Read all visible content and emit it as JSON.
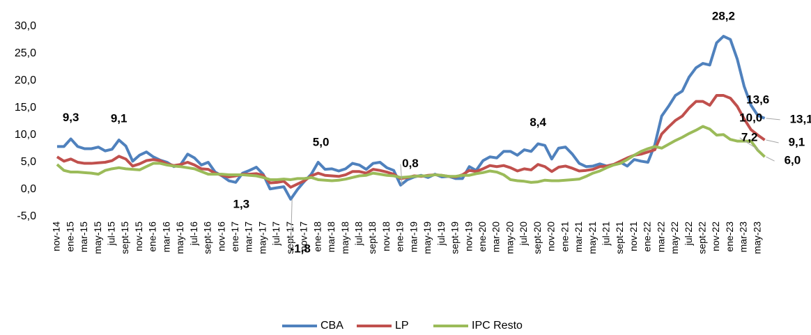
{
  "chart_data": {
    "type": "line",
    "categories": [
      "nov-14",
      null,
      "ene-15",
      null,
      "mar-15",
      null,
      "may-15",
      null,
      "jul-15",
      null,
      "sept-15",
      null,
      "nov-15",
      null,
      "ene-16",
      null,
      "mar-16",
      null,
      "may-16",
      null,
      "jul-16",
      null,
      "sept-16",
      null,
      "nov-16",
      null,
      "ene-17",
      null,
      "mar-17",
      null,
      "may-17",
      null,
      "jul-17",
      null,
      "sept-17",
      null,
      "nov-17",
      null,
      "ene-18",
      null,
      "mar-18",
      null,
      "may-18",
      null,
      "jul-18",
      null,
      "sept-18",
      null,
      "nov-18",
      null,
      "ene-19",
      null,
      "mar-19",
      null,
      "may-19",
      null,
      "jul-19",
      null,
      "sept-19",
      null,
      "nov-19",
      null,
      "ene-20",
      null,
      "mar-20",
      null,
      "may-20",
      null,
      "jul-20",
      null,
      "sept-20",
      null,
      "nov-20",
      null,
      "ene-21",
      null,
      "mar-21",
      null,
      "may-21",
      null,
      "jul-21",
      null,
      "sept-21",
      null,
      "nov-21",
      null,
      "ene-22",
      null,
      "mar-22",
      null,
      "may-22",
      null,
      "jul-22",
      null,
      "sept-22",
      null,
      "nov-22",
      null,
      "ene-23",
      null,
      "mar-23",
      null,
      "may-23",
      null
    ],
    "series": [
      {
        "name": "CBA",
        "color": "#4f81bd",
        "values": [
          7.9,
          7.9,
          9.3,
          7.9,
          7.5,
          7.5,
          7.8,
          7.1,
          7.4,
          9.1,
          8.0,
          5.2,
          6.3,
          6.9,
          6.0,
          5.4,
          5.0,
          4.2,
          4.6,
          6.5,
          5.8,
          4.5,
          5.0,
          3.2,
          2.5,
          1.6,
          1.3,
          3.0,
          3.5,
          4.1,
          2.8,
          0.1,
          0.3,
          0.5,
          -1.8,
          0.0,
          1.5,
          2.8,
          5.0,
          3.7,
          3.8,
          3.4,
          3.8,
          4.8,
          4.5,
          3.7,
          4.8,
          5.0,
          4.0,
          3.5,
          0.8,
          1.8,
          2.3,
          2.6,
          2.2,
          2.8,
          2.3,
          2.4,
          2.0,
          2.0,
          4.2,
          3.5,
          5.3,
          6.0,
          5.8,
          7.0,
          7.0,
          6.3,
          7.3,
          7.0,
          8.4,
          8.1,
          5.6,
          7.6,
          7.8,
          6.5,
          4.8,
          4.2,
          4.3,
          4.7,
          4.3,
          4.6,
          5.0,
          4.3,
          5.5,
          5.2,
          5.0,
          8.2,
          13.5,
          15.3,
          17.3,
          18.1,
          20.7,
          22.4,
          23.2,
          22.9,
          27.0,
          28.2,
          27.6,
          24.0,
          19.0,
          15.5,
          13.6,
          13.1
        ],
        "value_labels": [
          null,
          null,
          "9,3",
          null,
          null,
          null,
          null,
          null,
          null,
          "9,1",
          null,
          null,
          null,
          null,
          null,
          null,
          null,
          null,
          null,
          null,
          null,
          null,
          null,
          null,
          null,
          null,
          "1,3",
          null,
          null,
          null,
          null,
          null,
          null,
          null,
          "-1,8",
          null,
          null,
          null,
          "5,0",
          null,
          null,
          null,
          null,
          null,
          null,
          null,
          null,
          null,
          null,
          null,
          "0,8",
          null,
          null,
          null,
          null,
          null,
          null,
          null,
          null,
          null,
          null,
          null,
          null,
          null,
          null,
          null,
          null,
          null,
          null,
          null,
          "8,4",
          null,
          null,
          null,
          null,
          null,
          null,
          null,
          null,
          null,
          null,
          null,
          null,
          null,
          null,
          null,
          null,
          null,
          null,
          null,
          null,
          null,
          null,
          null,
          null,
          null,
          null,
          "28,2",
          null,
          null,
          null,
          null,
          "13,6",
          "13,1"
        ]
      },
      {
        "name": "LP",
        "color": "#c0504d",
        "values": [
          6.0,
          5.2,
          5.6,
          5.0,
          4.8,
          4.8,
          4.9,
          5.0,
          5.3,
          6.1,
          5.6,
          4.3,
          4.7,
          5.3,
          5.5,
          5.3,
          4.7,
          4.4,
          4.6,
          5.0,
          4.5,
          3.8,
          3.7,
          3.0,
          2.6,
          2.3,
          2.5,
          2.8,
          2.8,
          2.9,
          2.6,
          1.2,
          1.3,
          1.5,
          0.4,
          1.0,
          1.6,
          2.5,
          3.0,
          2.6,
          2.5,
          2.4,
          2.7,
          3.3,
          3.3,
          3.0,
          3.7,
          3.5,
          3.2,
          2.8,
          2.0,
          2.2,
          2.5,
          2.4,
          2.6,
          2.7,
          2.6,
          2.4,
          2.3,
          2.7,
          3.5,
          3.3,
          3.8,
          4.4,
          4.2,
          4.4,
          4.0,
          3.4,
          3.8,
          3.6,
          4.6,
          4.2,
          3.3,
          4.1,
          4.3,
          3.9,
          3.4,
          3.5,
          3.7,
          4.2,
          4.3,
          4.6,
          5.2,
          5.8,
          6.3,
          6.5,
          6.9,
          7.3,
          10.2,
          11.5,
          12.7,
          13.5,
          15.0,
          16.2,
          16.2,
          15.5,
          17.3,
          17.3,
          16.8,
          15.3,
          13.0,
          11.0,
          10.0,
          9.1
        ],
        "value_labels": [
          null,
          null,
          null,
          null,
          null,
          null,
          null,
          null,
          null,
          null,
          null,
          null,
          null,
          null,
          null,
          null,
          null,
          null,
          null,
          null,
          null,
          null,
          null,
          null,
          null,
          null,
          null,
          null,
          null,
          null,
          null,
          null,
          null,
          null,
          null,
          null,
          null,
          null,
          null,
          null,
          null,
          null,
          null,
          null,
          null,
          null,
          null,
          null,
          null,
          null,
          null,
          null,
          null,
          null,
          null,
          null,
          null,
          null,
          null,
          null,
          null,
          null,
          null,
          null,
          null,
          null,
          null,
          null,
          null,
          null,
          null,
          null,
          null,
          null,
          null,
          null,
          null,
          null,
          null,
          null,
          null,
          null,
          null,
          null,
          null,
          null,
          null,
          null,
          null,
          null,
          null,
          null,
          null,
          null,
          null,
          null,
          null,
          null,
          null,
          null,
          null,
          null,
          "10,0",
          "9,1"
        ]
      },
      {
        "name": "IPC Resto",
        "color": "#9bbb59",
        "values": [
          4.6,
          3.5,
          3.2,
          3.2,
          3.1,
          3.0,
          2.8,
          3.5,
          3.8,
          4.0,
          3.8,
          3.7,
          3.6,
          4.2,
          4.8,
          4.8,
          4.5,
          4.3,
          4.2,
          4.0,
          3.8,
          3.3,
          2.8,
          2.8,
          2.8,
          2.7,
          2.7,
          2.7,
          2.6,
          2.5,
          2.2,
          1.8,
          1.8,
          1.9,
          1.8,
          2.0,
          2.0,
          2.2,
          1.8,
          1.7,
          1.6,
          1.7,
          1.9,
          2.2,
          2.5,
          2.6,
          3.0,
          2.8,
          2.6,
          2.5,
          2.2,
          2.3,
          2.4,
          2.5,
          2.5,
          2.7,
          2.6,
          2.4,
          2.4,
          2.6,
          2.6,
          2.9,
          3.1,
          3.4,
          3.2,
          2.7,
          1.8,
          1.6,
          1.5,
          1.3,
          1.4,
          1.7,
          1.6,
          1.6,
          1.7,
          1.8,
          1.9,
          2.4,
          3.0,
          3.4,
          4.0,
          4.5,
          4.8,
          5.5,
          6.3,
          7.0,
          7.5,
          7.9,
          7.6,
          8.3,
          9.0,
          9.6,
          10.3,
          10.9,
          11.6,
          11.1,
          10.0,
          10.1,
          9.2,
          8.9,
          8.9,
          8.9,
          7.2,
          6.0
        ],
        "value_labels": [
          null,
          null,
          null,
          null,
          null,
          null,
          null,
          null,
          null,
          null,
          null,
          null,
          null,
          null,
          null,
          null,
          null,
          null,
          null,
          null,
          null,
          null,
          null,
          null,
          null,
          null,
          null,
          null,
          null,
          null,
          null,
          null,
          null,
          null,
          null,
          null,
          null,
          null,
          null,
          null,
          null,
          null,
          null,
          null,
          null,
          null,
          null,
          null,
          null,
          null,
          null,
          null,
          null,
          null,
          null,
          null,
          null,
          null,
          null,
          null,
          null,
          null,
          null,
          null,
          null,
          null,
          null,
          null,
          null,
          null,
          null,
          null,
          null,
          null,
          null,
          null,
          null,
          null,
          null,
          null,
          null,
          null,
          null,
          null,
          null,
          null,
          null,
          null,
          null,
          null,
          null,
          null,
          null,
          null,
          null,
          null,
          null,
          null,
          null,
          null,
          null,
          null,
          "7,2",
          "6,0"
        ]
      }
    ],
    "ylim": [
      -5,
      30
    ],
    "yticks": [
      {
        "value": -5,
        "label": "-5,0"
      },
      {
        "value": 0,
        "label": "0,0"
      },
      {
        "value": 5,
        "label": "5,0"
      },
      {
        "value": 10,
        "label": "10,0"
      },
      {
        "value": 15,
        "label": "15,0"
      },
      {
        "value": 20,
        "label": "20,0"
      },
      {
        "value": 25,
        "label": "25,0"
      },
      {
        "value": 30,
        "label": "30,0"
      }
    ],
    "grid": false,
    "legend": "bottom"
  }
}
